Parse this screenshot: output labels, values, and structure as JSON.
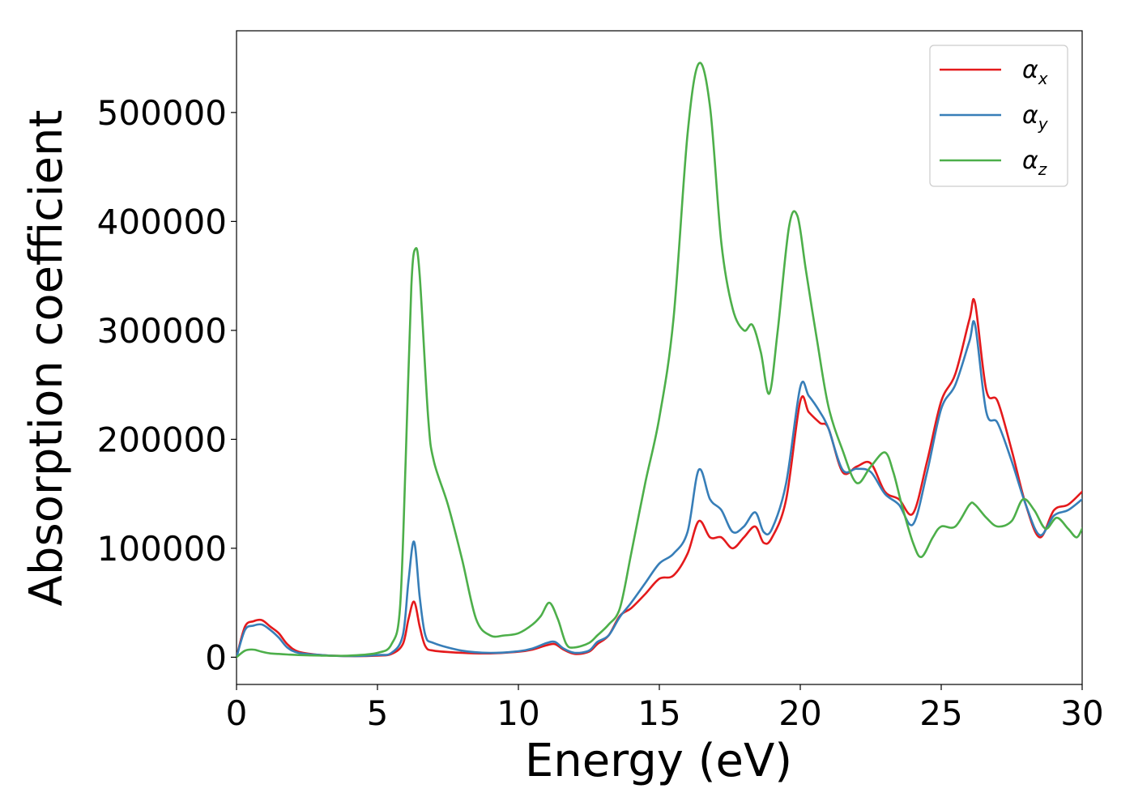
{
  "chart_data": {
    "type": "line",
    "xlabel": "Energy (eV)",
    "ylabel": "Absorption coefficient",
    "xlim": [
      0,
      30
    ],
    "ylim": [
      -25000,
      575000
    ],
    "x_ticks": [
      0,
      5,
      10,
      15,
      20,
      25,
      30
    ],
    "y_ticks": [
      0,
      100000,
      200000,
      300000,
      400000,
      500000
    ],
    "x_tick_labels": [
      "0",
      "5",
      "10",
      "15",
      "20",
      "25",
      "30"
    ],
    "y_tick_labels": [
      "0",
      "100000",
      "200000",
      "300000",
      "400000",
      "500000"
    ],
    "grid": false,
    "legend_position": "top-right",
    "series": [
      {
        "name": "α_x",
        "label_main": "α",
        "label_sub": "x",
        "color": "#e41a1c",
        "x": [
          0,
          0.3,
          0.6,
          0.9,
          1.2,
          1.5,
          1.8,
          2.2,
          3.0,
          4.0,
          5.0,
          5.5,
          5.9,
          6.1,
          6.3,
          6.5,
          6.7,
          7.0,
          8.0,
          9.0,
          10.0,
          10.5,
          11.0,
          11.3,
          11.6,
          12.0,
          12.5,
          12.8,
          13.2,
          13.6,
          14.0,
          14.5,
          15.0,
          15.5,
          16.0,
          16.4,
          16.8,
          17.2,
          17.6,
          18.0,
          18.4,
          18.7,
          19.0,
          19.5,
          20.0,
          20.3,
          20.7,
          21.0,
          21.5,
          22.0,
          22.5,
          23.0,
          23.5,
          24.0,
          24.5,
          25.0,
          25.5,
          26.0,
          26.2,
          26.6,
          27.0,
          27.5,
          28.0,
          28.5,
          29.0,
          29.5,
          30.0
        ],
        "y": [
          0,
          28000,
          33000,
          34000,
          28000,
          22000,
          12000,
          5000,
          2000,
          1000,
          1500,
          3000,
          12000,
          35000,
          51000,
          28000,
          10000,
          6000,
          4000,
          3500,
          5000,
          7000,
          11000,
          12000,
          7000,
          3000,
          5000,
          12000,
          20000,
          38000,
          45000,
          58000,
          72000,
          75000,
          95000,
          125000,
          110000,
          110000,
          100000,
          110000,
          120000,
          105000,
          110000,
          145000,
          235000,
          225000,
          215000,
          210000,
          170000,
          175000,
          178000,
          152000,
          145000,
          132000,
          180000,
          235000,
          260000,
          310000,
          325000,
          245000,
          235000,
          190000,
          140000,
          110000,
          135000,
          140000,
          152000
        ]
      },
      {
        "name": "α_y",
        "label_main": "α",
        "label_sub": "y",
        "color": "#377eb8",
        "x": [
          0,
          0.3,
          0.6,
          0.9,
          1.2,
          1.5,
          1.8,
          2.2,
          3.0,
          4.0,
          5.0,
          5.5,
          5.9,
          6.1,
          6.3,
          6.5,
          6.7,
          7.0,
          8.0,
          9.0,
          10.0,
          10.5,
          11.0,
          11.3,
          11.6,
          12.0,
          12.5,
          12.8,
          13.2,
          13.6,
          14.0,
          14.5,
          15.0,
          15.5,
          16.0,
          16.4,
          16.8,
          17.2,
          17.6,
          18.0,
          18.4,
          18.7,
          19.0,
          19.5,
          20.0,
          20.3,
          20.7,
          21.0,
          21.5,
          22.0,
          22.5,
          23.0,
          23.5,
          24.0,
          24.5,
          25.0,
          25.5,
          26.0,
          26.2,
          26.6,
          27.0,
          27.5,
          28.0,
          28.5,
          29.0,
          29.5,
          30.0
        ],
        "y": [
          0,
          25000,
          29000,
          30000,
          25000,
          18000,
          9000,
          4000,
          2000,
          1000,
          2000,
          4000,
          20000,
          70000,
          106000,
          55000,
          20000,
          13000,
          6000,
          4000,
          5500,
          8000,
          13000,
          14000,
          8000,
          4000,
          6000,
          14000,
          20000,
          37000,
          50000,
          68000,
          86000,
          95000,
          115000,
          172000,
          145000,
          135000,
          115000,
          120000,
          133000,
          115000,
          118000,
          160000,
          248000,
          240000,
          225000,
          210000,
          172000,
          173000,
          170000,
          150000,
          140000,
          122000,
          170000,
          228000,
          250000,
          290000,
          305000,
          225000,
          215000,
          180000,
          140000,
          112000,
          130000,
          135000,
          145000
        ]
      },
      {
        "name": "α_z",
        "label_main": "α",
        "label_sub": "z",
        "color": "#4daf4a",
        "x": [
          0,
          0.3,
          0.6,
          0.9,
          1.2,
          1.5,
          1.8,
          2.2,
          3.0,
          4.0,
          5.0,
          5.5,
          5.8,
          6.0,
          6.2,
          6.35,
          6.5,
          6.8,
          7.0,
          7.5,
          8.0,
          8.5,
          9.0,
          9.5,
          10.0,
          10.5,
          10.8,
          11.1,
          11.4,
          11.7,
          12.0,
          12.5,
          12.8,
          13.2,
          13.6,
          14.0,
          14.5,
          15.0,
          15.5,
          16.0,
          16.4,
          16.8,
          17.2,
          17.6,
          18.0,
          18.3,
          18.6,
          18.9,
          19.2,
          19.6,
          19.9,
          20.2,
          20.6,
          21.0,
          21.5,
          22.0,
          22.5,
          23.0,
          23.3,
          23.6,
          24.0,
          24.3,
          24.7,
          25.0,
          25.5,
          26.0,
          26.2,
          26.6,
          27.0,
          27.5,
          27.9,
          28.3,
          28.7,
          29.1,
          29.5,
          29.8,
          30.0
        ],
        "y": [
          0,
          6000,
          7000,
          5000,
          3500,
          3000,
          2500,
          2000,
          1500,
          1500,
          4000,
          12000,
          45000,
          180000,
          340000,
          375000,
          350000,
          220000,
          180000,
          140000,
          90000,
          35000,
          20000,
          20000,
          22000,
          30000,
          38000,
          50000,
          35000,
          12000,
          9000,
          13000,
          20000,
          30000,
          45000,
          95000,
          160000,
          220000,
          310000,
          480000,
          545000,
          505000,
          380000,
          320000,
          300000,
          305000,
          280000,
          242000,
          300000,
          395000,
          405000,
          355000,
          290000,
          230000,
          190000,
          160000,
          175000,
          188000,
          170000,
          140000,
          105000,
          92000,
          110000,
          120000,
          120000,
          140000,
          140000,
          128000,
          120000,
          125000,
          145000,
          135000,
          118000,
          128000,
          118000,
          110000,
          118000
        ]
      }
    ]
  }
}
